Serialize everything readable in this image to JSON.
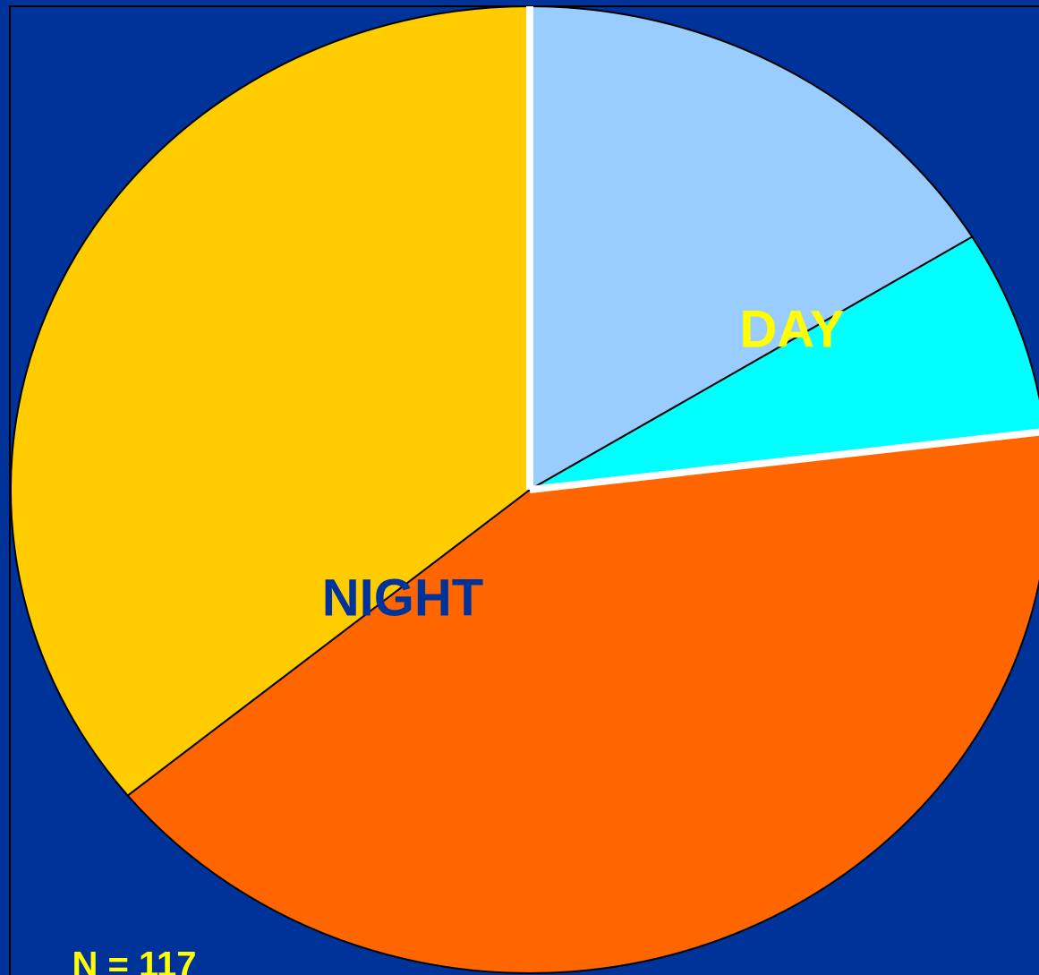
{
  "chart_data": {
    "type": "pie",
    "values": [
      19,
      8,
      48,
      42
    ],
    "colors": [
      "#99ccff",
      "#00ffff",
      "#ff6600",
      "#ffcc00"
    ],
    "annotations": [
      "DAY",
      "NIGHT",
      "N = 117"
    ]
  }
}
